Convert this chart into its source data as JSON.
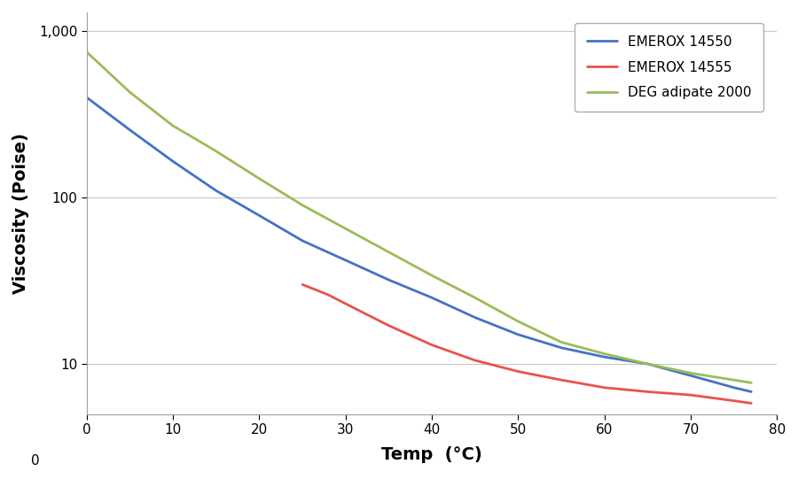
{
  "series": [
    {
      "label": "EMEROX 14550",
      "color": "#4472C4",
      "x": [
        0,
        5,
        10,
        15,
        20,
        25,
        30,
        35,
        40,
        45,
        50,
        55,
        60,
        65,
        70,
        75,
        77
      ],
      "y": [
        400,
        255,
        165,
        110,
        78,
        55,
        42,
        32,
        25,
        19,
        15,
        12.5,
        11,
        10,
        8.5,
        7.2,
        6.8
      ]
    },
    {
      "label": "EMEROX 14555",
      "color": "#E8534A",
      "x": [
        25,
        28,
        30,
        35,
        40,
        45,
        50,
        55,
        60,
        65,
        70,
        75,
        77
      ],
      "y": [
        30,
        26,
        23,
        17,
        13,
        10.5,
        9,
        8,
        7.2,
        6.8,
        6.5,
        6.0,
        5.8
      ]
    },
    {
      "label": "DEG adipate 2000",
      "color": "#9BBB59",
      "x": [
        0,
        5,
        10,
        12,
        15,
        20,
        25,
        30,
        35,
        40,
        45,
        50,
        55,
        60,
        65,
        70,
        75,
        77
      ],
      "y": [
        750,
        430,
        270,
        235,
        190,
        130,
        90,
        65,
        47,
        34,
        25,
        18,
        13.5,
        11.5,
        10,
        8.8,
        8.0,
        7.7
      ]
    }
  ],
  "xlabel": "Temp  (°C)",
  "ylabel": "Viscosity (Poise)",
  "xlim": [
    0,
    80
  ],
  "xticks": [
    0,
    10,
    20,
    30,
    40,
    50,
    60,
    70,
    80
  ],
  "background_color": "#ffffff",
  "grid_color": "#c8c8c8",
  "xlabel_fontsize": 14,
  "ylabel_fontsize": 14,
  "tick_fontsize": 11,
  "legend_fontsize": 11,
  "line_width": 2.0
}
